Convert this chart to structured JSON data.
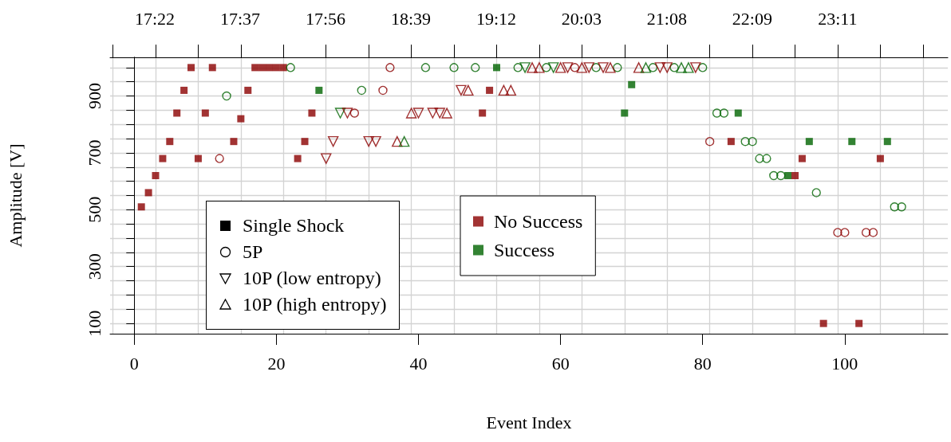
{
  "chart_data": {
    "type": "scatter",
    "xlabel": "Event Index",
    "ylabel": "Amplitude [V]",
    "xlim": [
      -3.4,
      114.5
    ],
    "xticks": [
      0,
      20,
      40,
      60,
      80,
      100
    ],
    "annotations": [
      {
        "text": "17:22",
        "x": 3
      },
      {
        "text": "17:37",
        "x": 15
      },
      {
        "text": "17:56",
        "x": 27
      },
      {
        "text": "18:39",
        "x": 39
      },
      {
        "text": "19:12",
        "x": 51
      },
      {
        "text": "20:03",
        "x": 63
      },
      {
        "text": "21:08",
        "x": 75
      },
      {
        "text": "22:09",
        "x": 87
      },
      {
        "text": "23:11",
        "x": 99
      },
      "Single Shock",
      "5P",
      "10P (low entropy)",
      "10P (high entropy)"
    ],
    "ylim": [
      64,
      1036
    ],
    "yticks": [
      100,
      {
        "value": 150,
        "label": null
      },
      {
        "value": 200,
        "label": null
      },
      {
        "value": 250,
        "label": null
      },
      300,
      {
        "value": 350,
        "label": null
      },
      {
        "value": 400,
        "label": null
      },
      {
        "value": 450,
        "label": null
      },
      500,
      {
        "value": 550,
        "label": null
      },
      {
        "value": 600,
        "label": null
      },
      {
        "value": 650,
        "label": null
      },
      700,
      {
        "value": 750,
        "label": null
      },
      {
        "value": 800,
        "label": null
      },
      {
        "value": 850,
        "label": null
      },
      900,
      {
        "value": 950,
        "label": null
      },
      {
        "value": 1000,
        "label": null
      }
    ],
    "grid": true,
    "legend": "bottom left",
    "series": [
      {
        "marker": "square",
        "x": [
          1,
          2,
          3,
          4,
          5,
          6,
          7,
          8,
          9,
          10,
          11,
          14,
          15,
          16,
          17,
          18,
          19,
          20,
          21,
          23,
          24,
          25,
          26,
          49,
          50,
          51,
          69,
          70,
          84,
          85,
          92,
          93,
          94,
          95,
          97,
          101,
          102,
          105,
          106
        ],
        "values": [
          510,
          560,
          620,
          680,
          740,
          840,
          920,
          1000,
          680,
          840,
          1000,
          740,
          820,
          920,
          1000,
          1000,
          1000,
          1000,
          1000,
          680,
          740,
          840,
          920,
          840,
          920,
          1000,
          840,
          940,
          740,
          840,
          620,
          620,
          680,
          740,
          100,
          740,
          100,
          680,
          740
        ],
        "colors": [
          "#8b0000",
          "#8b0000",
          "#8b0000",
          "#8b0000",
          "#8b0000",
          "#8b0000",
          "#8b0000",
          "#8b0000",
          "#8b0000",
          "#8b0000",
          "#8b0000",
          "#8b0000",
          "#8b0000",
          "#8b0000",
          "#8b0000",
          "#8b0000",
          "#8b0000",
          "#8b0000",
          "#8b0000",
          "#8b0000",
          "#8b0000",
          "#8b0000",
          "#006400",
          "#8b0000",
          "#8b0000",
          "#006400",
          "#006400",
          "#006400",
          "#8b0000",
          "#006400",
          "#006400",
          "#8b0000",
          "#8b0000",
          "#006400",
          "#8b0000",
          "#006400",
          "#8b0000",
          "#8b0000",
          "#006400"
        ]
      },
      {
        "marker": "circle",
        "x": [
          12,
          13,
          22,
          31,
          32,
          35,
          36,
          41,
          45,
          48,
          54,
          58,
          62,
          65,
          68,
          73,
          76,
          80,
          81,
          82,
          83,
          86,
          87,
          88,
          89,
          90,
          91,
          96,
          99,
          100,
          103,
          104,
          107,
          108
        ],
        "values": [
          680,
          900,
          1000,
          840,
          920,
          920,
          1000,
          1000,
          1000,
          1000,
          1000,
          1000,
          1000,
          1000,
          1000,
          1000,
          1000,
          1000,
          740,
          840,
          840,
          740,
          740,
          680,
          680,
          620,
          620,
          560,
          420,
          420,
          420,
          420,
          510,
          510
        ],
        "colors": [
          "#8b0000",
          "#006400",
          "#006400",
          "#8b0000",
          "#006400",
          "#8b0000",
          "#8b0000",
          "#006400",
          "#006400",
          "#006400",
          "#006400",
          "#006400",
          "#8b0000",
          "#006400",
          "#006400",
          "#006400",
          "#006400",
          "#006400",
          "#8b0000",
          "#006400",
          "#006400",
          "#006400",
          "#006400",
          "#006400",
          "#006400",
          "#006400",
          "#006400",
          "#006400",
          "#8b0000",
          "#8b0000",
          "#8b0000",
          "#8b0000",
          "#006400",
          "#006400"
        ]
      },
      {
        "marker": "triangle-down",
        "x": [
          27,
          28,
          29,
          30,
          33,
          34,
          40,
          42,
          43,
          46,
          55,
          59,
          61,
          64,
          66,
          74,
          75,
          79
        ],
        "values": [
          680,
          740,
          840,
          840,
          740,
          740,
          840,
          840,
          840,
          920,
          1000,
          1000,
          1000,
          1000,
          1000,
          1000,
          1000,
          1000
        ],
        "colors": [
          "#8b0000",
          "#8b0000",
          "#006400",
          "#8b0000",
          "#8b0000",
          "#8b0000",
          "#8b0000",
          "#8b0000",
          "#8b0000",
          "#8b0000",
          "#006400",
          "#006400",
          "#8b0000",
          "#8b0000",
          "#8b0000",
          "#8b0000",
          "#8b0000",
          "#8b0000"
        ]
      },
      {
        "marker": "triangle",
        "x": [
          37,
          38,
          39,
          44,
          47,
          52,
          53,
          56,
          57,
          60,
          63,
          67,
          71,
          72,
          77,
          78
        ],
        "values": [
          740,
          740,
          840,
          840,
          920,
          920,
          920,
          1000,
          1000,
          1000,
          1000,
          1000,
          1000,
          1000,
          1000,
          1000
        ],
        "colors": [
          "#8b0000",
          "#006400",
          "#8b0000",
          "#8b0000",
          "#8b0000",
          "#8b0000",
          "#8b0000",
          "#8b0000",
          "#8b0000",
          "#8b0000",
          "#8b0000",
          "#8b0000",
          "#8b0000",
          "#006400",
          "#006400",
          "#006400"
        ]
      },
      {
        "name": "No Success",
        "marker": "square",
        "color": "#8b0000"
      },
      {
        "name": "Success",
        "marker": "square",
        "color": "#006400"
      }
    ]
  }
}
